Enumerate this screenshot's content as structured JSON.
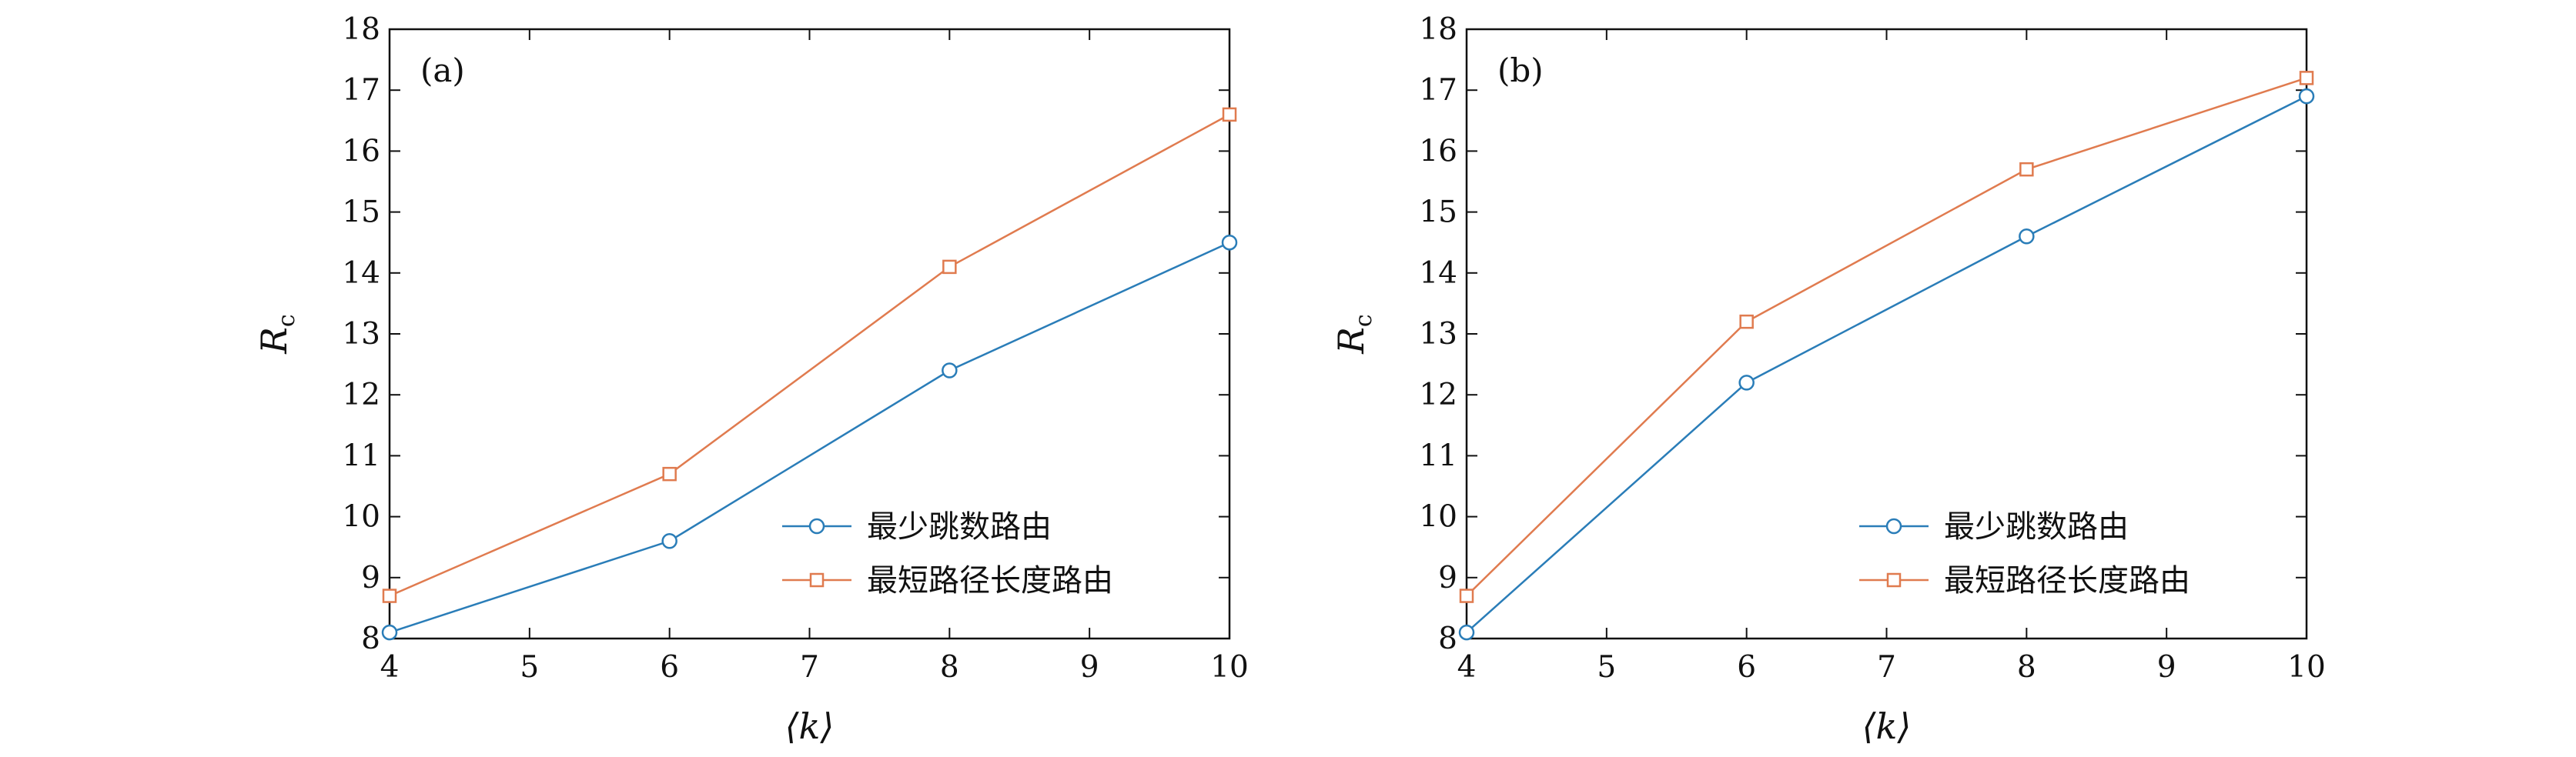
{
  "chart_data": [
    {
      "type": "line",
      "panel_label": "(a)",
      "xlabel": "⟨k⟩",
      "ylabel_main": "R",
      "ylabel_sub": "c",
      "xlim": [
        4,
        10
      ],
      "ylim": [
        8,
        18
      ],
      "x_ticks": [
        4,
        5,
        6,
        7,
        8,
        9,
        10
      ],
      "y_ticks": [
        8,
        9,
        10,
        11,
        12,
        13,
        14,
        15,
        16,
        17,
        18
      ],
      "grid": false,
      "legend_position": "lower-right",
      "series": [
        {
          "name": "最少跳数路由",
          "marker": "circle",
          "color": "#2a7db8",
          "x": [
            4,
            6,
            8,
            10
          ],
          "y": [
            8.1,
            9.6,
            12.4,
            14.5
          ]
        },
        {
          "name": "最短路径长度路由",
          "marker": "square",
          "color": "#e07b4f",
          "x": [
            4,
            6,
            8,
            10
          ],
          "y": [
            8.7,
            10.7,
            14.1,
            16.6
          ]
        }
      ]
    },
    {
      "type": "line",
      "panel_label": "(b)",
      "xlabel": "⟨k⟩",
      "ylabel_main": "R",
      "ylabel_sub": "c",
      "xlim": [
        4,
        10
      ],
      "ylim": [
        8,
        18
      ],
      "x_ticks": [
        4,
        5,
        6,
        7,
        8,
        9,
        10
      ],
      "y_ticks": [
        8,
        9,
        10,
        11,
        12,
        13,
        14,
        15,
        16,
        17,
        18
      ],
      "grid": false,
      "legend_position": "lower-right",
      "series": [
        {
          "name": "最少跳数路由",
          "marker": "circle",
          "color": "#2a7db8",
          "x": [
            4,
            6,
            8,
            10
          ],
          "y": [
            8.1,
            12.2,
            14.6,
            16.9
          ]
        },
        {
          "name": "最短路径长度路由",
          "marker": "square",
          "color": "#e07b4f",
          "x": [
            4,
            6,
            8,
            10
          ],
          "y": [
            8.7,
            13.2,
            15.7,
            17.2
          ]
        }
      ]
    }
  ]
}
